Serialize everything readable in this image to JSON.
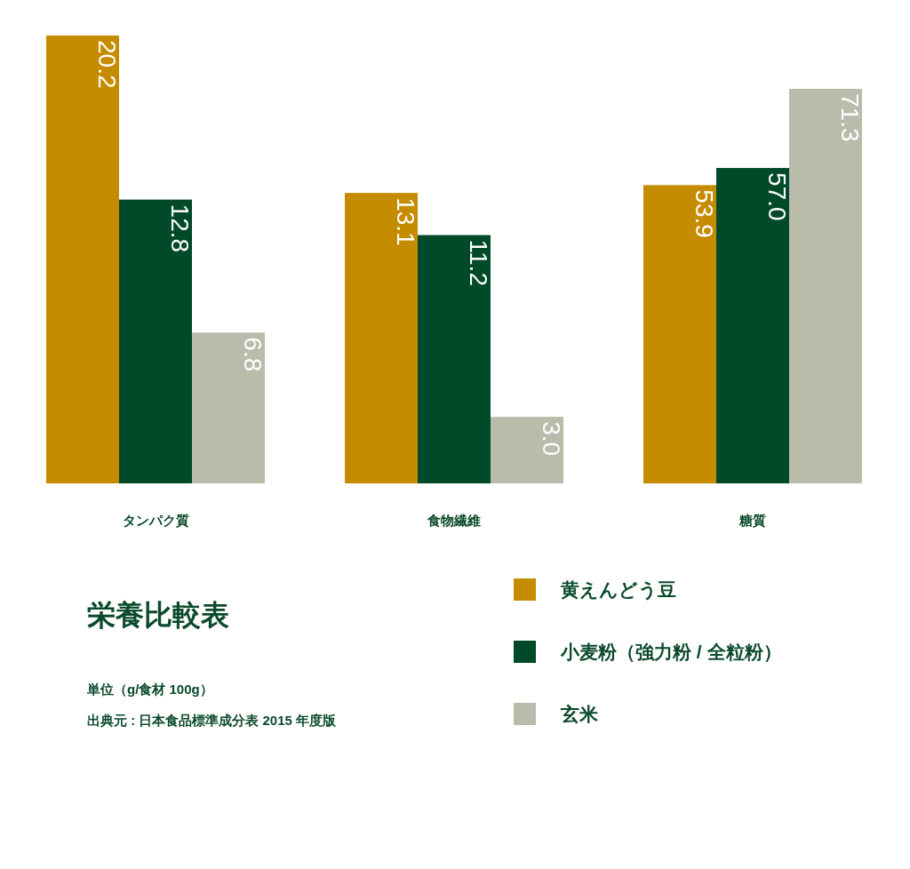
{
  "chart_data": {
    "type": "bar",
    "title": "栄養比較表",
    "annotations": [
      "単位（g/食材 100g）",
      "出典元 : 日本食品標準成分表 2015 年度版"
    ],
    "categories": [
      "タンパク質",
      "食物繊維",
      "糖質"
    ],
    "series": [
      {
        "name": "黄えんどう豆",
        "color": "#c68c00",
        "values": [
          20.2,
          13.1,
          null
        ],
        "value_labels": [
          "20.2",
          "13.1",
          null
        ]
      },
      {
        "name": "小麦粉（強力粉 / 全粒粉）",
        "color": "#004a29",
        "values": [
          12.8,
          11.2,
          null
        ],
        "value_labels": [
          "12.8",
          "11.2",
          null
        ]
      },
      {
        "name": "玄米",
        "color": "#b9bcab",
        "values": [
          6.8,
          3.0,
          null
        ],
        "value_labels": [
          "6.8",
          "3.0",
          null
        ]
      },
      {
        "color": "#c68c00",
        "axis": "y2",
        "values": [
          null,
          null,
          53.9
        ],
        "value_labels": [
          null,
          null,
          "53.9"
        ]
      },
      {
        "color": "#004a29",
        "axis": "y2",
        "values": [
          null,
          null,
          57.0
        ],
        "value_labels": [
          null,
          null,
          "57.0"
        ]
      },
      {
        "color": "#b9bcab",
        "axis": "y2",
        "values": [
          null,
          null,
          71.3
        ],
        "value_labels": [
          null,
          null,
          "71.3"
        ]
      }
    ],
    "tick_labels": "x",
    "legend": "bottom right"
  }
}
